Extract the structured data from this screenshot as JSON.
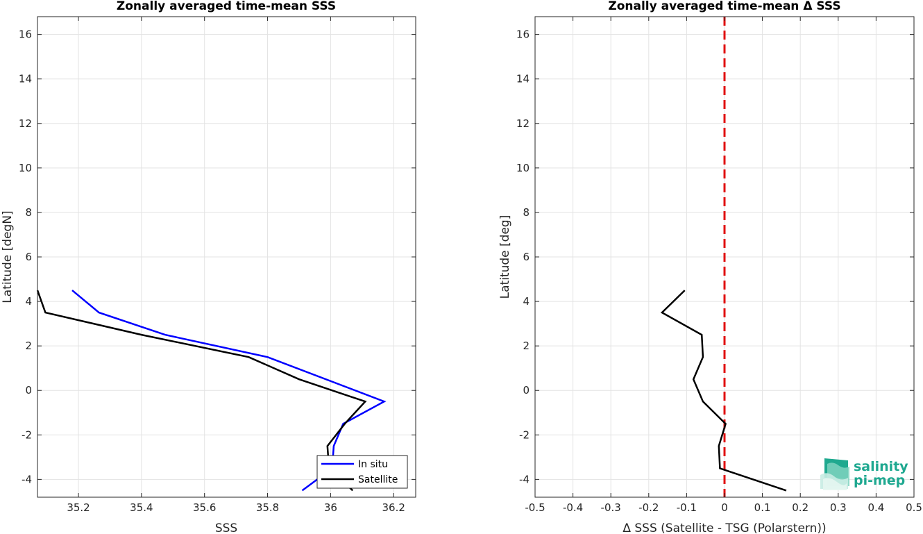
{
  "chart_data": [
    {
      "type": "line",
      "title": "Zonally averaged time-mean SSS",
      "xlabel": "SSS",
      "ylabel": "Latitude [degN]",
      "xlim": [
        35.07,
        36.27
      ],
      "ylim": [
        -4.8,
        16.8
      ],
      "xticks": [
        35.2,
        35.4,
        35.6,
        35.8,
        36,
        36.2
      ],
      "xtick_labels": [
        "35.2",
        "35.4",
        "35.6",
        "35.8",
        "36",
        "36.2"
      ],
      "yticks": [
        -4,
        -2,
        0,
        2,
        4,
        6,
        8,
        10,
        12,
        14,
        16
      ],
      "ytick_labels": [
        "-4",
        "-2",
        "0",
        "2",
        "4",
        "6",
        "8",
        "10",
        "12",
        "14",
        "16"
      ],
      "grid": true,
      "legend": "bottom-right",
      "series": [
        {
          "name": "In situ",
          "color": "#0000ff",
          "x": [
            35.18,
            35.265,
            35.475,
            35.8,
            36.17,
            36.04,
            36.01,
            36.005,
            35.91
          ],
          "y": [
            4.5,
            3.5,
            2.5,
            1.5,
            -0.5,
            -1.5,
            -2.5,
            -3.5,
            -4.5
          ]
        },
        {
          "name": "Satellite",
          "color": "#000000",
          "x": [
            35.07,
            35.095,
            35.4,
            35.74,
            35.9,
            36.11,
            36.045,
            35.99,
            35.995,
            36.07
          ],
          "y": [
            4.5,
            3.5,
            2.5,
            1.5,
            0.5,
            -0.5,
            -1.5,
            -2.5,
            -3.5,
            -4.5
          ]
        }
      ]
    },
    {
      "type": "line",
      "title": "Zonally averaged time-mean Δ SSS",
      "xlabel": "Δ SSS (Satellite - TSG (Polarstern))",
      "ylabel": "Latitude [deg]",
      "xlim": [
        -0.5,
        0.5
      ],
      "ylim": [
        -4.8,
        16.8
      ],
      "xticks": [
        -0.5,
        -0.4,
        -0.3,
        -0.2,
        -0.1,
        0,
        0.1,
        0.2,
        0.3,
        0.4,
        0.5
      ],
      "xtick_labels": [
        "-0.5",
        "-0.4",
        "-0.3",
        "-0.2",
        "-0.1",
        "0",
        "0.1",
        "0.2",
        "0.3",
        "0.4",
        "0.5"
      ],
      "yticks": [
        -4,
        -2,
        0,
        2,
        4,
        6,
        8,
        10,
        12,
        14,
        16
      ],
      "ytick_labels": [
        "-4",
        "-2",
        "0",
        "2",
        "4",
        "6",
        "8",
        "10",
        "12",
        "14",
        "16"
      ],
      "grid": true,
      "reference_line": {
        "x": 0,
        "color": "#e01010",
        "style": "dashed"
      },
      "series": [
        {
          "color": "#000000",
          "x": [
            -0.105,
            -0.165,
            -0.06,
            -0.057,
            -0.082,
            -0.057,
            0.003,
            -0.015,
            -0.012,
            0.163
          ],
          "y": [
            4.5,
            3.5,
            2.5,
            1.5,
            0.5,
            -0.5,
            -1.5,
            -2.5,
            -3.5,
            -4.5
          ]
        }
      ]
    }
  ],
  "logo": {
    "line1": "salinity",
    "line2": "pi-mep",
    "color": "#1ea890"
  }
}
